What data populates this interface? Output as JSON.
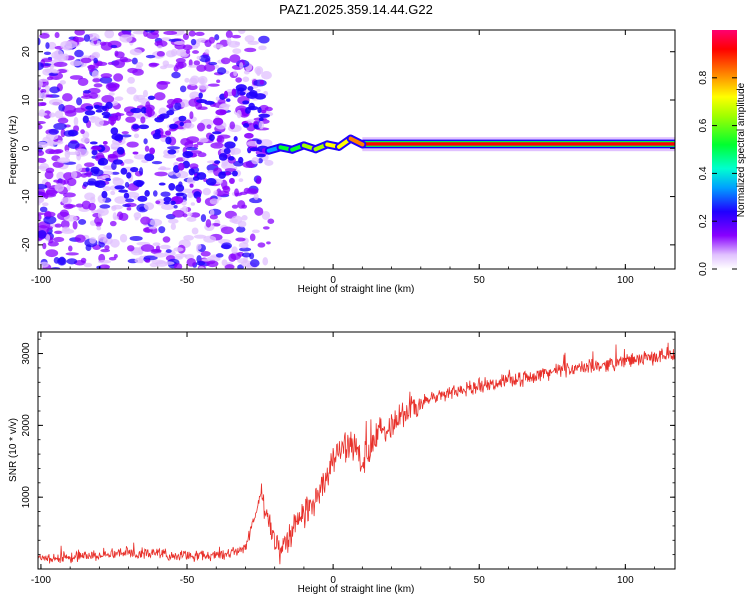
{
  "title": "PAZ1.2025.359.14.44.G22",
  "chart_data": [
    {
      "type": "heatmap",
      "title": "PAZ1.2025.359.14.44.G22",
      "xlabel": "Height of straight line (km)",
      "ylabel": "Frequency (Hz)",
      "xlim": [
        -101,
        117
      ],
      "ylim": [
        -25,
        24.5
      ],
      "xticks": [
        -100,
        -50,
        0,
        50,
        100
      ],
      "yticks": [
        -20,
        -10,
        0,
        10,
        20
      ],
      "xtick_labels": [
        "-100",
        "-50",
        "0",
        "50",
        "100"
      ],
      "ytick_labels": [
        "-20",
        "-10",
        "0",
        "10",
        "20"
      ],
      "colorbar": {
        "label": "Normalized spectral amplitude",
        "range": [
          0,
          1
        ],
        "ticks": [
          0.0,
          0.2,
          0.4,
          0.6,
          0.8
        ],
        "tick_labels": [
          "0.0",
          "0.2",
          "0.4",
          "0.6",
          "0.8"
        ],
        "colormap": [
          "#ffffff",
          "#c080ff",
          "#7000e0",
          "#2000ff",
          "#00c0ff",
          "#00ff40",
          "#ffff00",
          "#ff8000",
          "#ff0000",
          "#ff0060"
        ]
      },
      "line_track": [
        {
          "x": -22,
          "y": -0.5,
          "v": 0.3
        },
        {
          "x": -18,
          "y": 0.2,
          "v": 0.45
        },
        {
          "x": -14,
          "y": -0.3,
          "v": 0.5
        },
        {
          "x": -10,
          "y": 0.6,
          "v": 0.55
        },
        {
          "x": -6,
          "y": -0.2,
          "v": 0.6
        },
        {
          "x": -2,
          "y": 0.8,
          "v": 0.65
        },
        {
          "x": 2,
          "y": 0.3,
          "v": 0.7
        },
        {
          "x": 6,
          "y": 2.0,
          "v": 0.75
        },
        {
          "x": 10,
          "y": 0.8,
          "v": 0.85
        },
        {
          "x": 20,
          "y": 0.9,
          "v": 0.95
        },
        {
          "x": 40,
          "y": 0.9,
          "v": 1.0
        },
        {
          "x": 60,
          "y": 0.9,
          "v": 1.0
        },
        {
          "x": 80,
          "y": 0.9,
          "v": 0.95
        },
        {
          "x": 100,
          "y": 0.9,
          "v": 0.9
        },
        {
          "x": 117,
          "y": 0.9,
          "v": 0.85
        }
      ]
    },
    {
      "type": "line",
      "xlabel": "Height of straight line (km)",
      "ylabel": "SNR (10 * v/v)",
      "xlim": [
        -101,
        117
      ],
      "ylim": [
        0,
        3300
      ],
      "xticks": [
        -100,
        -50,
        0,
        50,
        100
      ],
      "yticks": [
        1000,
        2000,
        3000
      ],
      "xtick_labels": [
        "-100",
        "-50",
        "0",
        "50",
        "100"
      ],
      "ytick_labels": [
        "1000",
        "2000",
        "3000"
      ],
      "series": [
        {
          "name": "SNR",
          "color": "#e8302a",
          "x": [
            -101,
            -90,
            -80,
            -70,
            -60,
            -50,
            -40,
            -35,
            -30,
            -27,
            -25,
            -22,
            -20,
            -17,
            -15,
            -12,
            -10,
            -7,
            -5,
            -2,
            0,
            2,
            5,
            8,
            10,
            12,
            15,
            18,
            20,
            25,
            30,
            35,
            40,
            45,
            50,
            55,
            60,
            65,
            70,
            75,
            80,
            85,
            90,
            95,
            100,
            105,
            110,
            117
          ],
          "values": [
            150,
            160,
            200,
            240,
            210,
            180,
            190,
            220,
            300,
            700,
            1000,
            700,
            400,
            280,
            500,
            650,
            800,
            900,
            1100,
            1300,
            1500,
            1650,
            1750,
            1700,
            1400,
            1600,
            1850,
            1950,
            2050,
            2200,
            2300,
            2400,
            2450,
            2500,
            2550,
            2600,
            2620,
            2650,
            2700,
            2750,
            2780,
            2800,
            2820,
            2860,
            2900,
            2920,
            2950,
            3000
          ]
        }
      ]
    }
  ]
}
